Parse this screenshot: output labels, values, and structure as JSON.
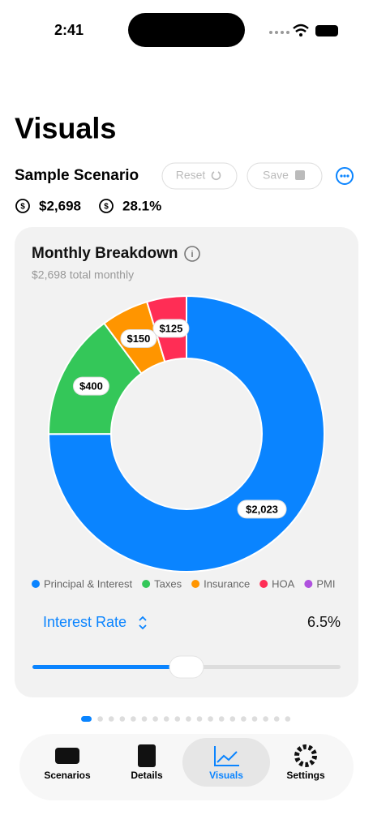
{
  "status_bar": {
    "time": "2:41"
  },
  "header": {
    "title": "Visuals",
    "scenario": "Sample Scenario",
    "buttons": [
      "Reset",
      "Save"
    ],
    "stats": [
      "$2,698",
      "28.1%"
    ]
  },
  "card": {
    "title": "Monthly Breakdown",
    "subtitle": "$2,698 total monthly",
    "control": {
      "label": "Interest Rate",
      "value": "6.5%"
    }
  },
  "chart_data": {
    "type": "donut",
    "categories": [
      "Principal & Interest",
      "Taxes",
      "Insurance",
      "HOA",
      "PMI"
    ],
    "values": [
      2023,
      400,
      150,
      125,
      0
    ],
    "value_labels": [
      "$2,023",
      "$400",
      "$150",
      "$125",
      null
    ],
    "colors": [
      "#0a84ff",
      "#34c759",
      "#ff9500",
      "#ff2d55",
      "#af52de"
    ]
  },
  "tabs": [
    "Scenarios",
    "Details",
    "Visuals",
    "Settings"
  ]
}
